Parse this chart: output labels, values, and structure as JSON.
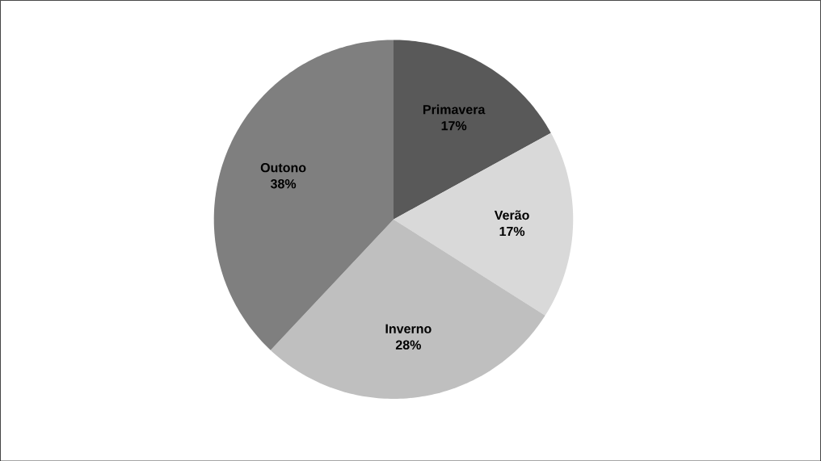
{
  "chart_data": {
    "type": "pie",
    "categories": [
      "Primavera",
      "Verão",
      "Inverno",
      "Outono"
    ],
    "values": [
      17,
      17,
      28,
      38
    ],
    "value_labels": [
      "17%",
      "17%",
      "28%",
      "38%"
    ],
    "colors": [
      "#595959",
      "#d9d9d9",
      "#bfbfbf",
      "#7f7f7f"
    ]
  }
}
